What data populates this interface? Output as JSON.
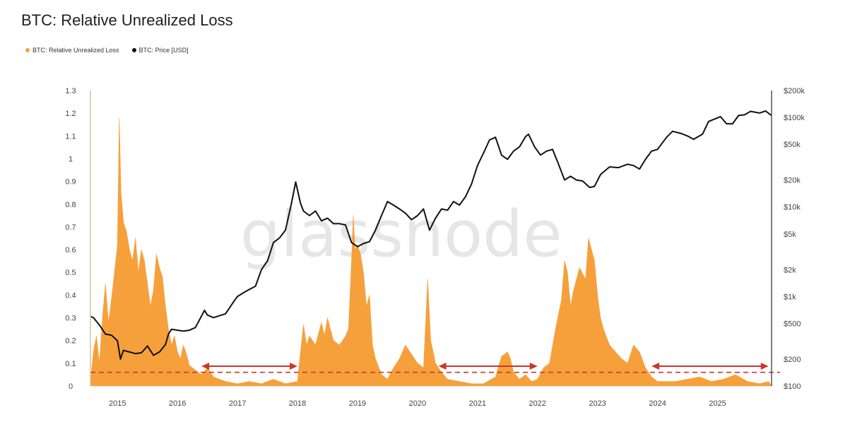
{
  "title": "BTC: Relative Unrealized Loss",
  "legend": {
    "loss_label": "BTC: Relative Unrealized Loss",
    "price_label": "BTC: Price [USD]"
  },
  "watermark": "glassnode",
  "colors": {
    "loss": "#f6a03c",
    "price": "#111111",
    "arrow": "#c8382c",
    "threshold": "#c8382c"
  },
  "chart_data": {
    "type": "area",
    "title": "BTC: Relative Unrealized Loss",
    "x_unit": "year",
    "x_range": [
      2014.55,
      2025.9
    ],
    "x_ticks": [
      "2015",
      "2016",
      "2017",
      "2018",
      "2019",
      "2020",
      "2021",
      "2022",
      "2023",
      "2024",
      "2025"
    ],
    "left_axis": {
      "ylim": [
        0,
        1.3
      ],
      "ticks": [
        "0",
        "0.1",
        "0.2",
        "0.3",
        "0.4",
        "0.5",
        "0.6",
        "0.7",
        "0.8",
        "0.9",
        "1",
        "1.1",
        "1.2",
        "1.3"
      ]
    },
    "right_axis": {
      "scale": "log",
      "ylim": [
        100,
        200000
      ],
      "ticks": [
        {
          "label": "$100",
          "value": 100
        },
        {
          "label": "$200",
          "value": 200
        },
        {
          "label": "$500",
          "value": 500
        },
        {
          "label": "$1k",
          "value": 1000
        },
        {
          "label": "$2k",
          "value": 2000
        },
        {
          "label": "$5k",
          "value": 5000
        },
        {
          "label": "$10k",
          "value": 10000
        },
        {
          "label": "$20k",
          "value": 20000
        },
        {
          "label": "$50k",
          "value": 50000
        },
        {
          "label": "$100k",
          "value": 100000
        },
        {
          "label": "$200k",
          "value": 200000
        }
      ]
    },
    "threshold": 0.06,
    "arrows": [
      {
        "from": 2016.4,
        "to": 2018.0
      },
      {
        "from": 2020.35,
        "to": 2022.0
      },
      {
        "from": 2023.9,
        "to": 2025.85
      }
    ],
    "series": [
      {
        "name": "BTC: Relative Unrealized Loss",
        "axis": "left",
        "points": [
          [
            2014.55,
            0.02
          ],
          [
            2014.6,
            0.15
          ],
          [
            2014.65,
            0.22
          ],
          [
            2014.7,
            0.1
          ],
          [
            2014.75,
            0.3
          ],
          [
            2014.8,
            0.45
          ],
          [
            2014.85,
            0.28
          ],
          [
            2014.9,
            0.38
          ],
          [
            2014.95,
            0.5
          ],
          [
            2015.0,
            0.62
          ],
          [
            2015.03,
            1.18
          ],
          [
            2015.06,
            0.85
          ],
          [
            2015.1,
            0.72
          ],
          [
            2015.15,
            0.68
          ],
          [
            2015.2,
            0.6
          ],
          [
            2015.25,
            0.55
          ],
          [
            2015.3,
            0.65
          ],
          [
            2015.35,
            0.5
          ],
          [
            2015.4,
            0.6
          ],
          [
            2015.45,
            0.55
          ],
          [
            2015.5,
            0.45
          ],
          [
            2015.55,
            0.35
          ],
          [
            2015.6,
            0.42
          ],
          [
            2015.65,
            0.58
          ],
          [
            2015.7,
            0.52
          ],
          [
            2015.75,
            0.48
          ],
          [
            2015.8,
            0.35
          ],
          [
            2015.85,
            0.25
          ],
          [
            2015.9,
            0.18
          ],
          [
            2015.95,
            0.22
          ],
          [
            2016.0,
            0.15
          ],
          [
            2016.05,
            0.12
          ],
          [
            2016.1,
            0.18
          ],
          [
            2016.15,
            0.14
          ],
          [
            2016.2,
            0.09
          ],
          [
            2016.3,
            0.07
          ],
          [
            2016.4,
            0.05
          ],
          [
            2016.5,
            0.08
          ],
          [
            2016.6,
            0.04
          ],
          [
            2016.8,
            0.02
          ],
          [
            2017.0,
            0.01
          ],
          [
            2017.2,
            0.02
          ],
          [
            2017.4,
            0.01
          ],
          [
            2017.6,
            0.03
          ],
          [
            2017.8,
            0.01
          ],
          [
            2018.0,
            0.02
          ],
          [
            2018.05,
            0.15
          ],
          [
            2018.1,
            0.27
          ],
          [
            2018.15,
            0.18
          ],
          [
            2018.2,
            0.22
          ],
          [
            2018.3,
            0.18
          ],
          [
            2018.4,
            0.28
          ],
          [
            2018.45,
            0.22
          ],
          [
            2018.5,
            0.3
          ],
          [
            2018.55,
            0.25
          ],
          [
            2018.6,
            0.2
          ],
          [
            2018.7,
            0.18
          ],
          [
            2018.8,
            0.22
          ],
          [
            2018.85,
            0.25
          ],
          [
            2018.9,
            0.55
          ],
          [
            2018.93,
            0.75
          ],
          [
            2018.96,
            0.6
          ],
          [
            2019.0,
            0.62
          ],
          [
            2019.05,
            0.58
          ],
          [
            2019.1,
            0.5
          ],
          [
            2019.15,
            0.35
          ],
          [
            2019.2,
            0.4
          ],
          [
            2019.25,
            0.18
          ],
          [
            2019.3,
            0.12
          ],
          [
            2019.4,
            0.05
          ],
          [
            2019.5,
            0.03
          ],
          [
            2019.6,
            0.08
          ],
          [
            2019.7,
            0.12
          ],
          [
            2019.8,
            0.18
          ],
          [
            2019.9,
            0.14
          ],
          [
            2020.0,
            0.1
          ],
          [
            2020.1,
            0.08
          ],
          [
            2020.17,
            0.47
          ],
          [
            2020.22,
            0.2
          ],
          [
            2020.3,
            0.1
          ],
          [
            2020.4,
            0.06
          ],
          [
            2020.5,
            0.03
          ],
          [
            2020.7,
            0.02
          ],
          [
            2020.9,
            0.01
          ],
          [
            2021.1,
            0.01
          ],
          [
            2021.3,
            0.04
          ],
          [
            2021.4,
            0.13
          ],
          [
            2021.5,
            0.15
          ],
          [
            2021.55,
            0.12
          ],
          [
            2021.6,
            0.06
          ],
          [
            2021.7,
            0.03
          ],
          [
            2021.8,
            0.05
          ],
          [
            2021.9,
            0.02
          ],
          [
            2022.0,
            0.03
          ],
          [
            2022.1,
            0.08
          ],
          [
            2022.2,
            0.1
          ],
          [
            2022.3,
            0.25
          ],
          [
            2022.4,
            0.38
          ],
          [
            2022.45,
            0.55
          ],
          [
            2022.5,
            0.5
          ],
          [
            2022.55,
            0.35
          ],
          [
            2022.6,
            0.42
          ],
          [
            2022.7,
            0.52
          ],
          [
            2022.8,
            0.47
          ],
          [
            2022.85,
            0.65
          ],
          [
            2022.9,
            0.6
          ],
          [
            2022.95,
            0.55
          ],
          [
            2023.0,
            0.4
          ],
          [
            2023.05,
            0.3
          ],
          [
            2023.1,
            0.25
          ],
          [
            2023.2,
            0.18
          ],
          [
            2023.3,
            0.15
          ],
          [
            2023.4,
            0.12
          ],
          [
            2023.5,
            0.1
          ],
          [
            2023.6,
            0.18
          ],
          [
            2023.7,
            0.15
          ],
          [
            2023.8,
            0.08
          ],
          [
            2023.9,
            0.04
          ],
          [
            2024.0,
            0.02
          ],
          [
            2024.3,
            0.02
          ],
          [
            2024.5,
            0.03
          ],
          [
            2024.7,
            0.04
          ],
          [
            2024.9,
            0.02
          ],
          [
            2025.1,
            0.03
          ],
          [
            2025.3,
            0.05
          ],
          [
            2025.5,
            0.02
          ],
          [
            2025.7,
            0.01
          ],
          [
            2025.85,
            0.02
          ],
          [
            2025.9,
            0.0
          ]
        ]
      },
      {
        "name": "BTC: Price [USD]",
        "axis": "right",
        "points": [
          [
            2014.55,
            600
          ],
          [
            2014.6,
            580
          ],
          [
            2014.7,
            480
          ],
          [
            2014.8,
            380
          ],
          [
            2014.9,
            370
          ],
          [
            2015.0,
            320
          ],
          [
            2015.05,
            200
          ],
          [
            2015.1,
            250
          ],
          [
            2015.2,
            240
          ],
          [
            2015.3,
            230
          ],
          [
            2015.4,
            235
          ],
          [
            2015.5,
            280
          ],
          [
            2015.6,
            220
          ],
          [
            2015.7,
            240
          ],
          [
            2015.8,
            290
          ],
          [
            2015.85,
            380
          ],
          [
            2015.9,
            430
          ],
          [
            2016.0,
            420
          ],
          [
            2016.1,
            410
          ],
          [
            2016.2,
            420
          ],
          [
            2016.3,
            450
          ],
          [
            2016.45,
            700
          ],
          [
            2016.5,
            620
          ],
          [
            2016.6,
            580
          ],
          [
            2016.8,
            640
          ],
          [
            2016.95,
            900
          ],
          [
            2017.0,
            1000
          ],
          [
            2017.1,
            1100
          ],
          [
            2017.2,
            1200
          ],
          [
            2017.3,
            1300
          ],
          [
            2017.4,
            2000
          ],
          [
            2017.5,
            2500
          ],
          [
            2017.6,
            4000
          ],
          [
            2017.7,
            4500
          ],
          [
            2017.8,
            5500
          ],
          [
            2017.9,
            11000
          ],
          [
            2017.97,
            19000
          ],
          [
            2018.05,
            11000
          ],
          [
            2018.1,
            9000
          ],
          [
            2018.2,
            8000
          ],
          [
            2018.3,
            9000
          ],
          [
            2018.4,
            7000
          ],
          [
            2018.5,
            7500
          ],
          [
            2018.6,
            6500
          ],
          [
            2018.7,
            6500
          ],
          [
            2018.8,
            6300
          ],
          [
            2018.9,
            4000
          ],
          [
            2019.0,
            3600
          ],
          [
            2019.1,
            3900
          ],
          [
            2019.2,
            4100
          ],
          [
            2019.3,
            5500
          ],
          [
            2019.4,
            8000
          ],
          [
            2019.5,
            11500
          ],
          [
            2019.6,
            10500
          ],
          [
            2019.7,
            9500
          ],
          [
            2019.8,
            8500
          ],
          [
            2019.9,
            7200
          ],
          [
            2020.0,
            8000
          ],
          [
            2020.1,
            9500
          ],
          [
            2020.2,
            5500
          ],
          [
            2020.3,
            7500
          ],
          [
            2020.4,
            9500
          ],
          [
            2020.5,
            9200
          ],
          [
            2020.6,
            11500
          ],
          [
            2020.7,
            10500
          ],
          [
            2020.8,
            13000
          ],
          [
            2020.9,
            18000
          ],
          [
            2021.0,
            29000
          ],
          [
            2021.1,
            40000
          ],
          [
            2021.2,
            56000
          ],
          [
            2021.3,
            60000
          ],
          [
            2021.4,
            38000
          ],
          [
            2021.5,
            34000
          ],
          [
            2021.6,
            42000
          ],
          [
            2021.7,
            47000
          ],
          [
            2021.8,
            61000
          ],
          [
            2021.85,
            65000
          ],
          [
            2021.95,
            47000
          ],
          [
            2022.05,
            38000
          ],
          [
            2022.15,
            42000
          ],
          [
            2022.25,
            44000
          ],
          [
            2022.35,
            30000
          ],
          [
            2022.45,
            20000
          ],
          [
            2022.55,
            22000
          ],
          [
            2022.65,
            20000
          ],
          [
            2022.75,
            19500
          ],
          [
            2022.87,
            16500
          ],
          [
            2022.95,
            17000
          ],
          [
            2023.05,
            23000
          ],
          [
            2023.2,
            28000
          ],
          [
            2023.35,
            27500
          ],
          [
            2023.5,
            30000
          ],
          [
            2023.6,
            29000
          ],
          [
            2023.7,
            26500
          ],
          [
            2023.8,
            34000
          ],
          [
            2023.9,
            42000
          ],
          [
            2024.0,
            44000
          ],
          [
            2024.15,
            60000
          ],
          [
            2024.25,
            70000
          ],
          [
            2024.4,
            66000
          ],
          [
            2024.5,
            62000
          ],
          [
            2024.6,
            57000
          ],
          [
            2024.75,
            65000
          ],
          [
            2024.85,
            90000
          ],
          [
            2024.95,
            96000
          ],
          [
            2025.05,
            102000
          ],
          [
            2025.15,
            85000
          ],
          [
            2025.25,
            85000
          ],
          [
            2025.35,
            105000
          ],
          [
            2025.45,
            107000
          ],
          [
            2025.55,
            117000
          ],
          [
            2025.7,
            112000
          ],
          [
            2025.8,
            118000
          ],
          [
            2025.9,
            105000
          ]
        ]
      }
    ]
  }
}
